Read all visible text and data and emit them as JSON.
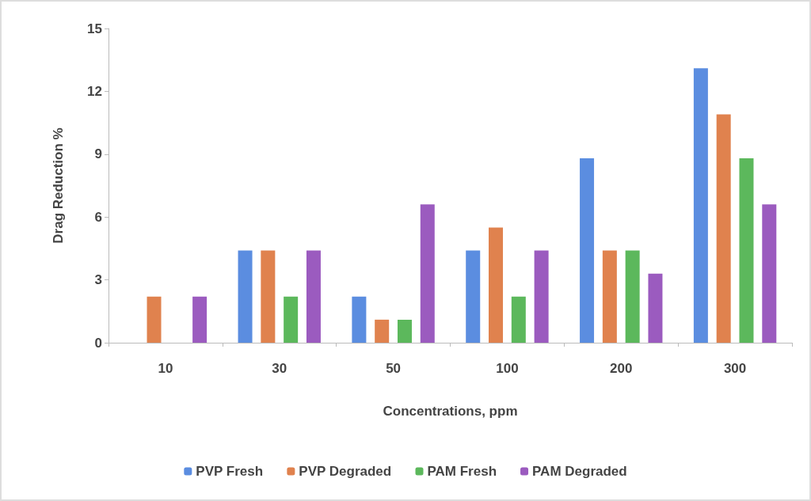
{
  "chart_data": {
    "type": "bar",
    "xlabel": "Concentrations, ppm",
    "ylabel": "Drag Reduction %",
    "categories": [
      "10",
      "30",
      "50",
      "100",
      "200",
      "300"
    ],
    "series": [
      {
        "name": "PVP Fresh",
        "color": "#5b8de0",
        "values": [
          0,
          4.4,
          2.2,
          4.4,
          8.8,
          13.1
        ]
      },
      {
        "name": "PVP Degraded",
        "color": "#e0824e",
        "values": [
          2.2,
          4.4,
          1.1,
          5.5,
          4.4,
          10.9
        ]
      },
      {
        "name": "PAM Fresh",
        "color": "#5cb85c",
        "values": [
          0,
          2.2,
          1.1,
          2.2,
          4.4,
          8.8
        ]
      },
      {
        "name": "PAM Degraded",
        "color": "#9b5bbf",
        "values": [
          2.2,
          4.4,
          6.6,
          4.4,
          3.3,
          6.6
        ]
      }
    ],
    "ylim": [
      0,
      15
    ],
    "yticks": [
      0,
      3,
      6,
      9,
      12,
      15
    ],
    "grid": false,
    "legend": "bottom"
  }
}
